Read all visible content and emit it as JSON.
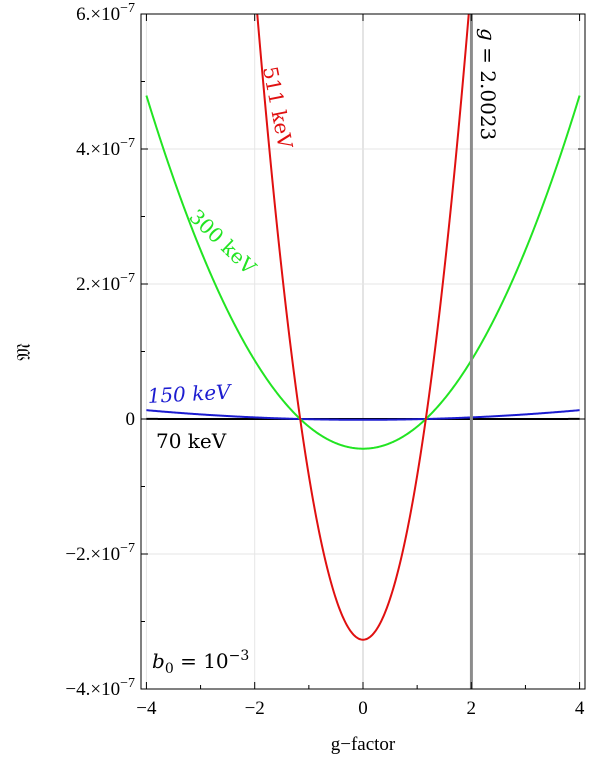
{
  "chart_data": {
    "type": "line",
    "xlabel": "g−factor",
    "ylabel": "𝔐",
    "xlim": [
      -4.1,
      4.1
    ],
    "ylim": [
      -4e-07,
      6e-07
    ],
    "grid": true,
    "x_ticks": [
      {
        "value": -4,
        "label": "−4"
      },
      {
        "value": -2,
        "label": "−2"
      },
      {
        "value": 0,
        "label": "0"
      },
      {
        "value": 2,
        "label": "2"
      },
      {
        "value": 4,
        "label": "4"
      }
    ],
    "y_ticks": [
      {
        "value": 6e-07,
        "mant": "6.×10",
        "exp": "−7"
      },
      {
        "value": 4e-07,
        "mant": "4.×10",
        "exp": "−7"
      },
      {
        "value": 2e-07,
        "mant": "2.×10",
        "exp": "−7"
      },
      {
        "value": 0,
        "mant": "0",
        "exp": ""
      },
      {
        "value": -2e-07,
        "mant": "−2.×10",
        "exp": "−7"
      },
      {
        "value": -4e-07,
        "mant": "−4.×10",
        "exp": "−7"
      }
    ],
    "series": [
      {
        "name": "511 keV",
        "color": "#e01010",
        "min_value": -3.27e-07,
        "roots": [
          -1.16,
          1.16
        ]
      },
      {
        "name": "300 keV",
        "color": "#22e422",
        "min_value": -4.4e-08,
        "roots": [
          -1.16,
          1.16
        ]
      },
      {
        "name": "150 keV",
        "color": "#1c1cd0",
        "min_value": -1.2e-09,
        "roots": [
          -1.16,
          1.16
        ]
      },
      {
        "name": "70 keV",
        "color": "#000000",
        "min_value": -1e-11,
        "roots": [
          -1.16,
          1.16
        ]
      }
    ],
    "vertical_line": {
      "x": 2.0023,
      "label_lhs": "g",
      "label_rhs": "= 2.0023",
      "color": "#8c8c8c"
    },
    "annotation": {
      "base": "b",
      "sub": "0",
      "eq": "= 10",
      "exp": "−3"
    }
  }
}
